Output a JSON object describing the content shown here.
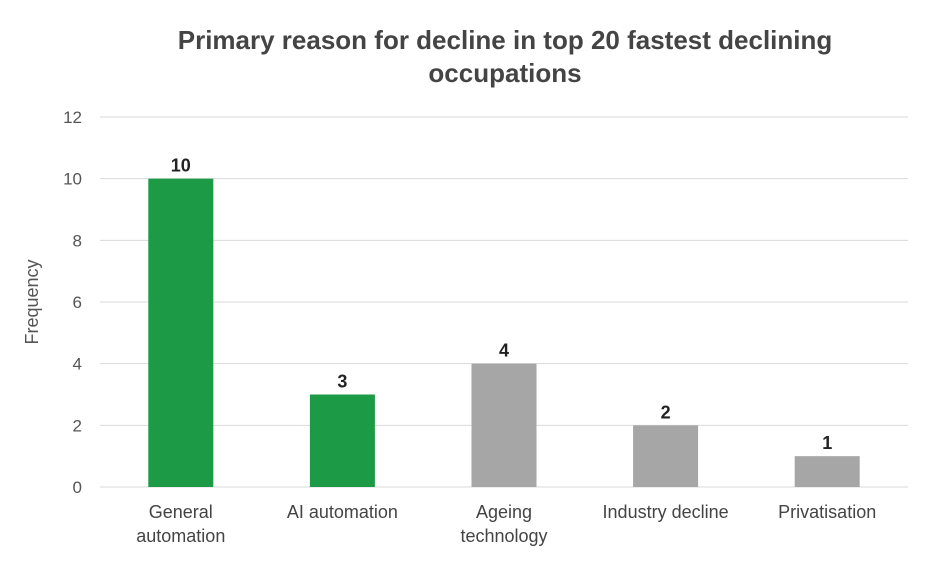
{
  "chart_data": {
    "type": "bar",
    "title_lines": [
      "Primary reason for decline in top 20 fastest declining",
      "occupations"
    ],
    "xlabel": "",
    "ylabel": "Frequency",
    "ylim": [
      0,
      12
    ],
    "yticks": [
      0,
      2,
      4,
      6,
      8,
      10,
      12
    ],
    "grid": true,
    "legend": "none",
    "categories": [
      [
        "General",
        "automation"
      ],
      [
        "AI automation"
      ],
      [
        "Ageing",
        "technology"
      ],
      [
        "Industry decline"
      ],
      [
        "Privatisation"
      ]
    ],
    "values": [
      10,
      3,
      4,
      2,
      1
    ],
    "value_labels": [
      "10",
      "3",
      "4",
      "2",
      "1"
    ],
    "bar_colors": [
      "#1c9a45",
      "#1c9a45",
      "#a6a6a6",
      "#a6a6a6",
      "#a6a6a6"
    ]
  }
}
